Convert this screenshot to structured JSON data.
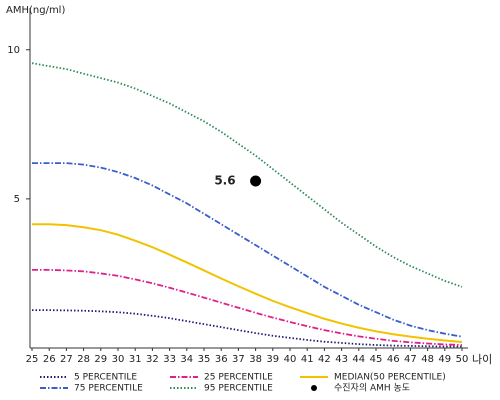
{
  "chart_data": {
    "type": "line",
    "y_label": "AMH(ng/ml)",
    "x_label": "나이",
    "x": [
      25,
      26,
      27,
      28,
      29,
      30,
      31,
      32,
      33,
      34,
      35,
      36,
      37,
      38,
      39,
      40,
      41,
      42,
      43,
      44,
      45,
      46,
      47,
      48,
      49,
      50
    ],
    "xlim": [
      25,
      50
    ],
    "xticks": [
      25,
      26,
      27,
      28,
      29,
      30,
      31,
      32,
      33,
      34,
      35,
      36,
      37,
      38,
      39,
      40,
      41,
      42,
      43,
      44,
      45,
      46,
      47,
      48,
      49,
      50
    ],
    "ylim": [
      0,
      11.3
    ],
    "yticks": [
      5,
      10
    ],
    "series": [
      {
        "name": "5 PERCENTILE",
        "color": "#1c1c78",
        "style": "dotted",
        "values": [
          1.27,
          1.27,
          1.26,
          1.25,
          1.23,
          1.2,
          1.15,
          1.08,
          1.0,
          0.9,
          0.8,
          0.7,
          0.6,
          0.5,
          0.41,
          0.34,
          0.27,
          0.21,
          0.17,
          0.13,
          0.1,
          0.08,
          0.07,
          0.06,
          0.05,
          0.05
        ]
      },
      {
        "name": "25 PERCENTILE",
        "color": "#e0208a",
        "style": "dashdot",
        "values": [
          2.62,
          2.62,
          2.6,
          2.57,
          2.5,
          2.42,
          2.3,
          2.17,
          2.02,
          1.86,
          1.69,
          1.52,
          1.35,
          1.18,
          1.02,
          0.87,
          0.73,
          0.6,
          0.49,
          0.39,
          0.31,
          0.24,
          0.19,
          0.15,
          0.12,
          0.1
        ]
      },
      {
        "name": "MEDIAN(50 PERCENTILE)",
        "color": "#f2c200",
        "style": "solid",
        "values": [
          4.15,
          4.15,
          4.12,
          4.05,
          3.95,
          3.8,
          3.6,
          3.38,
          3.13,
          2.87,
          2.6,
          2.33,
          2.07,
          1.82,
          1.58,
          1.37,
          1.17,
          0.98,
          0.82,
          0.68,
          0.56,
          0.46,
          0.38,
          0.31,
          0.25,
          0.2
        ]
      },
      {
        "name": "75 PERCENTILE",
        "color": "#3a5fc8",
        "style": "dashdot",
        "values": [
          6.2,
          6.2,
          6.2,
          6.15,
          6.05,
          5.9,
          5.7,
          5.45,
          5.15,
          4.85,
          4.5,
          4.15,
          3.8,
          3.45,
          3.1,
          2.75,
          2.4,
          2.05,
          1.75,
          1.45,
          1.2,
          0.95,
          0.75,
          0.6,
          0.48,
          0.38
        ]
      },
      {
        "name": "95 PERCENTILE",
        "color": "#2e8b57",
        "style": "dotted",
        "values": [
          9.55,
          9.45,
          9.35,
          9.2,
          9.05,
          8.9,
          8.7,
          8.45,
          8.2,
          7.9,
          7.6,
          7.25,
          6.85,
          6.45,
          6.0,
          5.55,
          5.1,
          4.65,
          4.2,
          3.8,
          3.4,
          3.05,
          2.75,
          2.5,
          2.25,
          2.05
        ]
      }
    ],
    "marker": {
      "name": "수진자의 AMH 농도",
      "x": 38,
      "y": 5.6,
      "color": "#000000"
    }
  }
}
